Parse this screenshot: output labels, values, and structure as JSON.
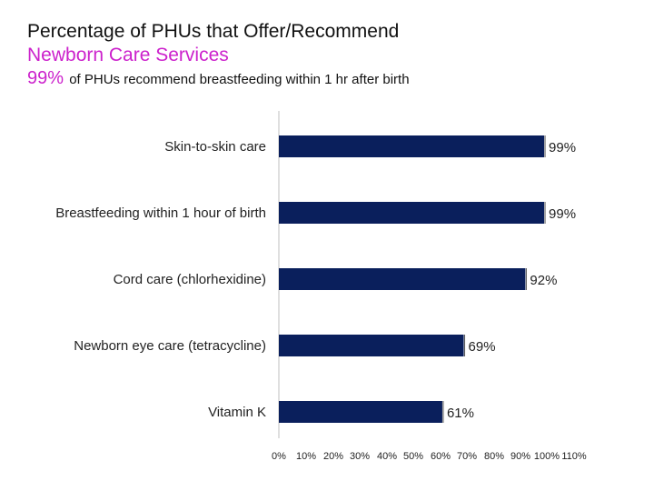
{
  "title": {
    "line1": "Percentage of PHUs that Offer/Recommend",
    "line2": "Newborn Care Services",
    "stat_value": "99%",
    "stat_text": "of PHUs recommend breastfeeding within 1 hr after birth"
  },
  "colors": {
    "bar": "#0a1f5c",
    "accent": "#cc22cc",
    "axis": "#bfbfbf",
    "text": "#222222"
  },
  "chart_data": {
    "type": "bar",
    "orientation": "horizontal",
    "categories": [
      "Skin-to-skin care",
      "Breastfeeding within 1 hour of birth",
      "Cord care  (chlorhexidine)",
      "Newborn eye care (tetracycline)",
      "Vitamin K"
    ],
    "values": [
      99,
      99,
      92,
      69,
      61
    ],
    "data_labels": [
      "99%",
      "99%",
      "92%",
      "69%",
      "61%"
    ],
    "x_ticks": [
      "0%",
      "10%",
      "20%",
      "30%",
      "40%",
      "50%",
      "60%",
      "70%",
      "80%",
      "90%",
      "100%",
      "110%"
    ],
    "xlim": [
      0,
      110
    ],
    "grid": false,
    "legend": "none"
  }
}
